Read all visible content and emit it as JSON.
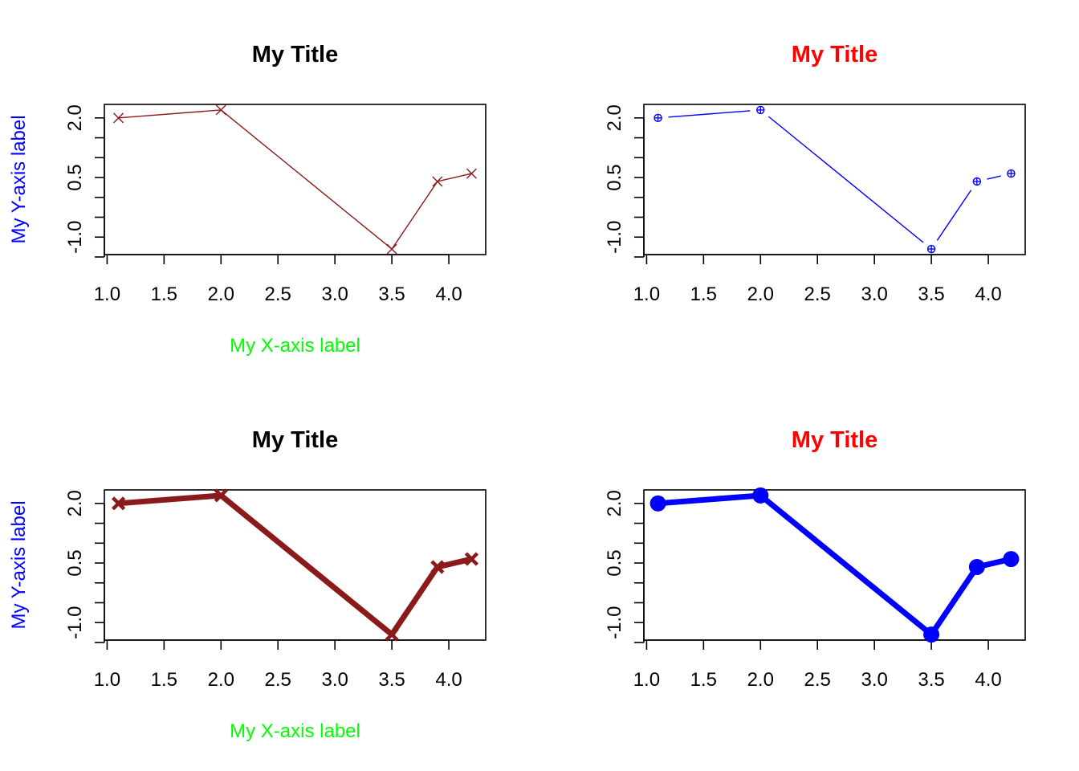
{
  "chart_data": [
    {
      "type": "line",
      "title": "My Title",
      "title_color": "#000000",
      "xlabel": "My X-axis label",
      "xlabel_color": "#00ff00",
      "ylabel": "My Y-axis label",
      "ylabel_color": "#0000ff",
      "x": [
        1.1,
        2.0,
        3.5,
        3.9,
        4.2
      ],
      "y": [
        2.0,
        2.2,
        -1.3,
        0.4,
        0.6
      ],
      "xlim": [
        1.1,
        4.2
      ],
      "ylim": [
        -1.3,
        2.2
      ],
      "xticks": [
        "1.0",
        "1.5",
        "2.0",
        "2.5",
        "3.0",
        "3.5",
        "4.0"
      ],
      "yticks": [
        "-1.0",
        "0.5",
        "2.0"
      ],
      "series_color": "#8b1a1a",
      "marker": "x",
      "line_style": "solid",
      "line_weight": "thin"
    },
    {
      "type": "line",
      "title": "My Title",
      "title_color": "#ff0000",
      "xlabel": "",
      "ylabel": "",
      "x": [
        1.1,
        2.0,
        3.5,
        3.9,
        4.2
      ],
      "y": [
        2.0,
        2.2,
        -1.3,
        0.4,
        0.6
      ],
      "xlim": [
        1.1,
        4.2
      ],
      "ylim": [
        -1.3,
        2.2
      ],
      "xticks": [
        "1.0",
        "1.5",
        "2.0",
        "2.5",
        "3.0",
        "3.5",
        "4.0"
      ],
      "yticks": [
        "-1.0",
        "0.5",
        "2.0"
      ],
      "series_color": "#0000ff",
      "marker": "circle-plus",
      "line_style": "gapped",
      "line_weight": "thin"
    },
    {
      "type": "line",
      "title": "My Title",
      "title_color": "#000000",
      "xlabel": "My X-axis label",
      "xlabel_color": "#00ff00",
      "ylabel": "My Y-axis label",
      "ylabel_color": "#0000ff",
      "x": [
        1.1,
        2.0,
        3.5,
        3.9,
        4.2
      ],
      "y": [
        2.0,
        2.2,
        -1.3,
        0.4,
        0.6
      ],
      "xlim": [
        1.1,
        4.2
      ],
      "ylim": [
        -1.3,
        2.2
      ],
      "xticks": [
        "1.0",
        "1.5",
        "2.0",
        "2.5",
        "3.0",
        "3.5",
        "4.0"
      ],
      "yticks": [
        "-1.0",
        "0.5",
        "2.0"
      ],
      "series_color": "#8b1a1a",
      "marker": "x",
      "line_style": "solid",
      "line_weight": "thick"
    },
    {
      "type": "line",
      "title": "My Title",
      "title_color": "#ff0000",
      "xlabel": "",
      "ylabel": "",
      "x": [
        1.1,
        2.0,
        3.5,
        3.9,
        4.2
      ],
      "y": [
        2.0,
        2.2,
        -1.3,
        0.4,
        0.6
      ],
      "xlim": [
        1.1,
        4.2
      ],
      "ylim": [
        -1.3,
        2.2
      ],
      "xticks": [
        "1.0",
        "1.5",
        "2.0",
        "2.5",
        "3.0",
        "3.5",
        "4.0"
      ],
      "yticks": [
        "-1.0",
        "0.5",
        "2.0"
      ],
      "series_color": "#0000ff",
      "marker": "filled-circle",
      "line_style": "gapped",
      "line_weight": "thick"
    }
  ]
}
